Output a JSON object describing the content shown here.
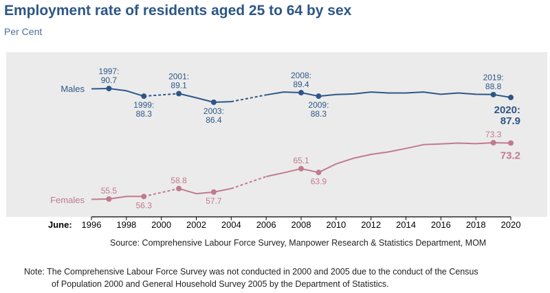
{
  "title": "Employment rate of residents aged 25 to 64 by sex",
  "subtitle": "Per Cent",
  "source": "Source: Comprehensive Labour Force Survey, Manpower Research & Statistics Department, MOM",
  "note_line1": "Note: The Comprehensive Labour Force Survey was not conducted in 2000 and 2005 due to the conduct of the Census",
  "note_line2": "of Population 2000 and General Household Survey 2005 by the Department of Statistics.",
  "colors": {
    "males": "#2d5687",
    "females": "#c07a8e",
    "panel": "#ebebeb"
  },
  "chart_data": {
    "type": "line",
    "title": "Employment rate of residents aged 25 to 64 by sex",
    "ylabel": "Per Cent",
    "xlabel": "June:",
    "xlim": [
      1996,
      2020
    ],
    "x_ticks": [
      1996,
      1998,
      2000,
      2002,
      2004,
      2006,
      2008,
      2010,
      2012,
      2014,
      2016,
      2018,
      2020
    ],
    "x_tick_labels": [
      "1996",
      "1998",
      "2000",
      "2002",
      "2004",
      "2006",
      "2008",
      "2010",
      "2012",
      "2014",
      "2016",
      "2018",
      "2020"
    ],
    "series": [
      {
        "name": "Males",
        "color": "#2d5687",
        "x": [
          1996,
          1997,
          1998,
          1999,
          2001,
          2002,
          2003,
          2004,
          2006,
          2007,
          2008,
          2009,
          2010,
          2011,
          2012,
          2013,
          2014,
          2015,
          2016,
          2017,
          2018,
          2019,
          2020
        ],
        "values": [
          90.6,
          90.7,
          90.0,
          88.3,
          89.1,
          87.8,
          86.4,
          86.6,
          88.7,
          89.6,
          89.4,
          88.3,
          88.8,
          89.0,
          89.6,
          89.3,
          89.3,
          89.6,
          88.9,
          89.3,
          88.9,
          88.8,
          87.9
        ],
        "gaps": [
          [
            1999,
            2001
          ],
          [
            2004,
            2006
          ]
        ]
      },
      {
        "name": "Females",
        "color": "#c07a8e",
        "x": [
          1996,
          1997,
          1998,
          1999,
          2001,
          2002,
          2003,
          2004,
          2006,
          2007,
          2008,
          2009,
          2010,
          2011,
          2012,
          2013,
          2014,
          2015,
          2016,
          2017,
          2018,
          2019,
          2020
        ],
        "values": [
          55.4,
          55.5,
          56.3,
          56.3,
          58.8,
          57.2,
          57.7,
          58.8,
          62.6,
          63.8,
          65.1,
          63.9,
          66.6,
          68.4,
          69.6,
          70.4,
          71.5,
          72.7,
          72.9,
          73.2,
          73.0,
          73.3,
          73.2
        ],
        "gaps": [
          [
            1999,
            2001
          ],
          [
            2004,
            2006
          ]
        ]
      }
    ],
    "annotations": [
      {
        "series": "Males",
        "year": "1997:",
        "value": "90.7",
        "x": 1997,
        "y": 90.7,
        "pos": "above"
      },
      {
        "series": "Males",
        "year": "1999:",
        "value": "88.3",
        "x": 1999,
        "y": 88.3,
        "pos": "below"
      },
      {
        "series": "Males",
        "year": "2001:",
        "value": "89.1",
        "x": 2001,
        "y": 89.1,
        "pos": "above"
      },
      {
        "series": "Males",
        "year": "2003:",
        "value": "86.4",
        "x": 2003,
        "y": 86.4,
        "pos": "below"
      },
      {
        "series": "Males",
        "year": "2008:",
        "value": "89.4",
        "x": 2008,
        "y": 89.4,
        "pos": "above"
      },
      {
        "series": "Males",
        "year": "2009:",
        "value": "88.3",
        "x": 2009,
        "y": 88.3,
        "pos": "below"
      },
      {
        "series": "Males",
        "year": "2019:",
        "value": "88.8",
        "x": 2019,
        "y": 88.8,
        "pos": "above"
      },
      {
        "series": "Males",
        "year": "2020:",
        "value": "87.9",
        "x": 2020,
        "y": 87.9,
        "pos": "highlight"
      },
      {
        "series": "Females",
        "value": "55.5",
        "x": 1997,
        "y": 55.5,
        "pos": "above"
      },
      {
        "series": "Females",
        "value": "56.3",
        "x": 1999,
        "y": 56.3,
        "pos": "below"
      },
      {
        "series": "Females",
        "value": "58.8",
        "x": 2001,
        "y": 58.8,
        "pos": "above"
      },
      {
        "series": "Females",
        "value": "57.7",
        "x": 2003,
        "y": 57.7,
        "pos": "below"
      },
      {
        "series": "Females",
        "value": "65.1",
        "x": 2008,
        "y": 65.1,
        "pos": "above"
      },
      {
        "series": "Females",
        "value": "63.9",
        "x": 2009,
        "y": 63.9,
        "pos": "below"
      },
      {
        "series": "Females",
        "value": "73.3",
        "x": 2019,
        "y": 73.3,
        "pos": "above"
      },
      {
        "series": "Females",
        "value": "73.2",
        "x": 2020,
        "y": 73.2,
        "pos": "highlight"
      }
    ]
  }
}
